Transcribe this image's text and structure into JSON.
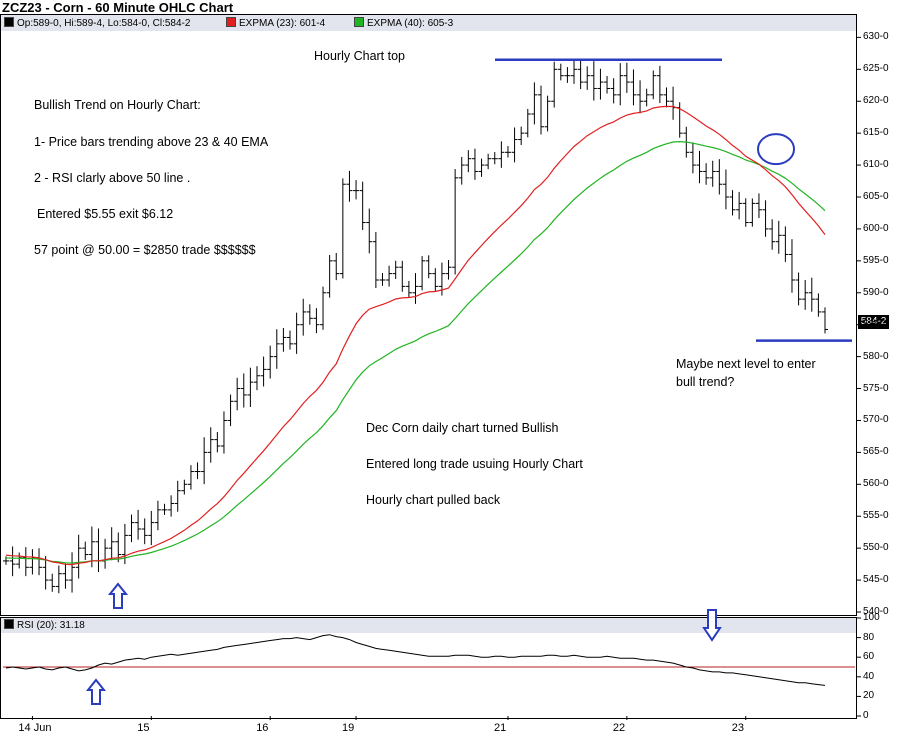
{
  "title": "ZCZ23 - Corn - 60 Minute OHLC Chart",
  "legend": {
    "ohlc": "Op:589-0, Hi:589-4, Lo:584-0, Cl:584-2",
    "ema23": "EXPMA (23): 601-4",
    "ema40": "EXPMA (40): 605-3",
    "rsi": "RSI (20): 31.18"
  },
  "annotations": {
    "hourly_top": "Hourly Chart top",
    "trend_title": "Bullish Trend on Hourly Chart:",
    "point1": "1- Price bars trending above 23 & 40 EMA",
    "point2": "2 - RSI clarly above 50 line .",
    "entered": "Entered   $5.55  exit  $6.12",
    "points": "57 point @ 50.00  = $2850  trade $$$$$$",
    "maybe1": "Maybe next level to enter",
    "maybe2": "bull trend?",
    "daily": "Dec Corn daily chart turned Bullish",
    "entered_long": "Entered  long trade usuing Hourly Chart",
    "pulled": "Hourly chart pulled back"
  },
  "last_price_label": "584-2",
  "colors": {
    "ema23": "#e02020",
    "ema40": "#22b422",
    "rsi": "#000000",
    "rsi50": "#b02020",
    "markup": "#2a3cbf",
    "legend_bg": "#e3e5ee"
  },
  "chart_data": [
    {
      "type": "ohlc",
      "title": "ZCZ23 - Corn - 60 Minute OHLC Chart",
      "ylim": [
        540,
        631
      ],
      "y_ticks": [
        "540-0",
        "545-0",
        "550-0",
        "555-0",
        "560-0",
        "565-0",
        "570-0",
        "575-0",
        "580-0",
        "585-0",
        "590-0",
        "595-0",
        "600-0",
        "605-0",
        "610-0",
        "615-0",
        "620-0",
        "625-0",
        "630-0"
      ],
      "x_ticks": [
        {
          "label": "14 Jun",
          "bar": 4
        },
        {
          "label": "15",
          "bar": 22
        },
        {
          "label": "16",
          "bar": 40
        },
        {
          "label": "19",
          "bar": 53
        },
        {
          "label": "21",
          "bar": 76
        },
        {
          "label": "22",
          "bar": 94
        },
        {
          "label": "23",
          "bar": 112
        }
      ],
      "bars": 125,
      "close": [
        548,
        547.5,
        548.5,
        547,
        548.5,
        547,
        545,
        544,
        546,
        545,
        547,
        550,
        549,
        551,
        548,
        550,
        551,
        549,
        552,
        554,
        553,
        552,
        554,
        556,
        556,
        557,
        559,
        560,
        562,
        562,
        565,
        567,
        566,
        570,
        573,
        575,
        574,
        576,
        577,
        578,
        580,
        582,
        583,
        582,
        585,
        587,
        586,
        585,
        590,
        595,
        593,
        607,
        606,
        606,
        601,
        598,
        592,
        592,
        593,
        594,
        591,
        590,
        591,
        595,
        593,
        591,
        593,
        594,
        608,
        610,
        611,
        609,
        610,
        611,
        611,
        612,
        612,
        614,
        615,
        618,
        621,
        616,
        620,
        625,
        624,
        624,
        625,
        623,
        624,
        622,
        623,
        622,
        621,
        624,
        623,
        621,
        620,
        621,
        624,
        621,
        620,
        619,
        615,
        612,
        610,
        609,
        608,
        609,
        607,
        605,
        603,
        604,
        601,
        604,
        603,
        600,
        598,
        599,
        596,
        592,
        589,
        590,
        589,
        587,
        584.25
      ],
      "ema23_last": 601.5,
      "ema40_last": 605.375,
      "markup": {
        "top_line": 626.5,
        "bottom_line": 582.5,
        "circle_center": 612.5
      }
    },
    {
      "type": "line",
      "title": "RSI (20): 31.18",
      "ylim": [
        0,
        100
      ],
      "y_ticks": [
        0,
        20,
        40,
        60,
        80,
        100
      ],
      "reference_line": 50,
      "values": [
        49,
        50,
        49,
        48,
        49,
        50,
        48,
        47,
        49,
        50,
        48,
        46,
        47,
        49,
        52,
        54,
        53,
        55,
        57,
        58,
        59,
        58,
        60,
        61,
        62,
        63,
        62,
        63,
        64,
        65,
        66,
        67,
        68,
        70,
        71,
        72,
        73,
        74,
        75,
        76,
        77,
        78,
        79,
        79,
        80,
        79,
        78,
        80,
        82,
        83,
        81,
        80,
        78,
        75,
        73,
        71,
        69,
        68,
        67,
        66,
        65,
        64,
        63,
        62,
        61,
        61,
        61,
        61,
        62,
        62,
        62,
        61,
        60,
        60,
        61,
        61,
        60,
        60,
        61,
        61,
        61,
        61,
        62,
        62,
        61,
        61,
        62,
        61,
        60,
        60,
        60,
        61,
        60,
        59,
        59,
        59,
        58,
        57,
        57,
        56,
        55,
        54,
        52,
        50,
        49,
        47,
        46,
        45,
        45,
        44,
        44,
        43,
        42,
        41,
        40,
        39,
        38,
        37,
        36,
        35,
        34,
        34,
        33,
        32,
        31.18
      ]
    }
  ]
}
